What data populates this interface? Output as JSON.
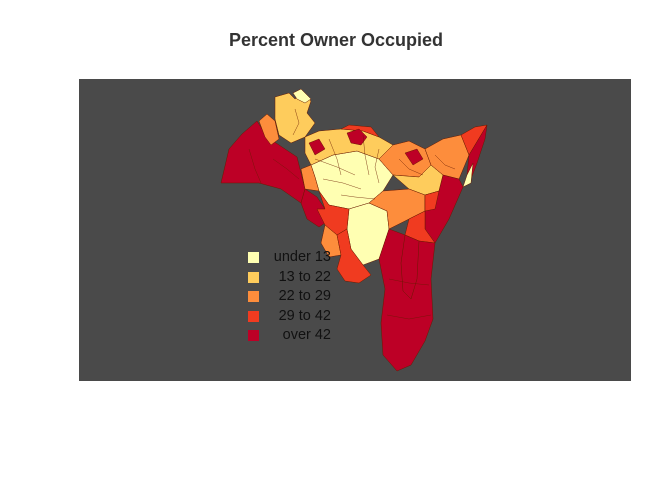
{
  "title": "Percent Owner Occupied",
  "legend": [
    {
      "label": "under 13",
      "color": "#ffffb2"
    },
    {
      "label": "13 to 22",
      "color": "#fecc5c"
    },
    {
      "label": "22 to 29",
      "color": "#fd8d3c"
    },
    {
      "label": "29 to 42",
      "color": "#f03b20"
    },
    {
      "label": "over 42",
      "color": "#bd0026"
    }
  ],
  "colors": {
    "panel_background": "#4a4a4a",
    "page_background": "#ffffff",
    "boundary": "#7a1a00"
  }
}
